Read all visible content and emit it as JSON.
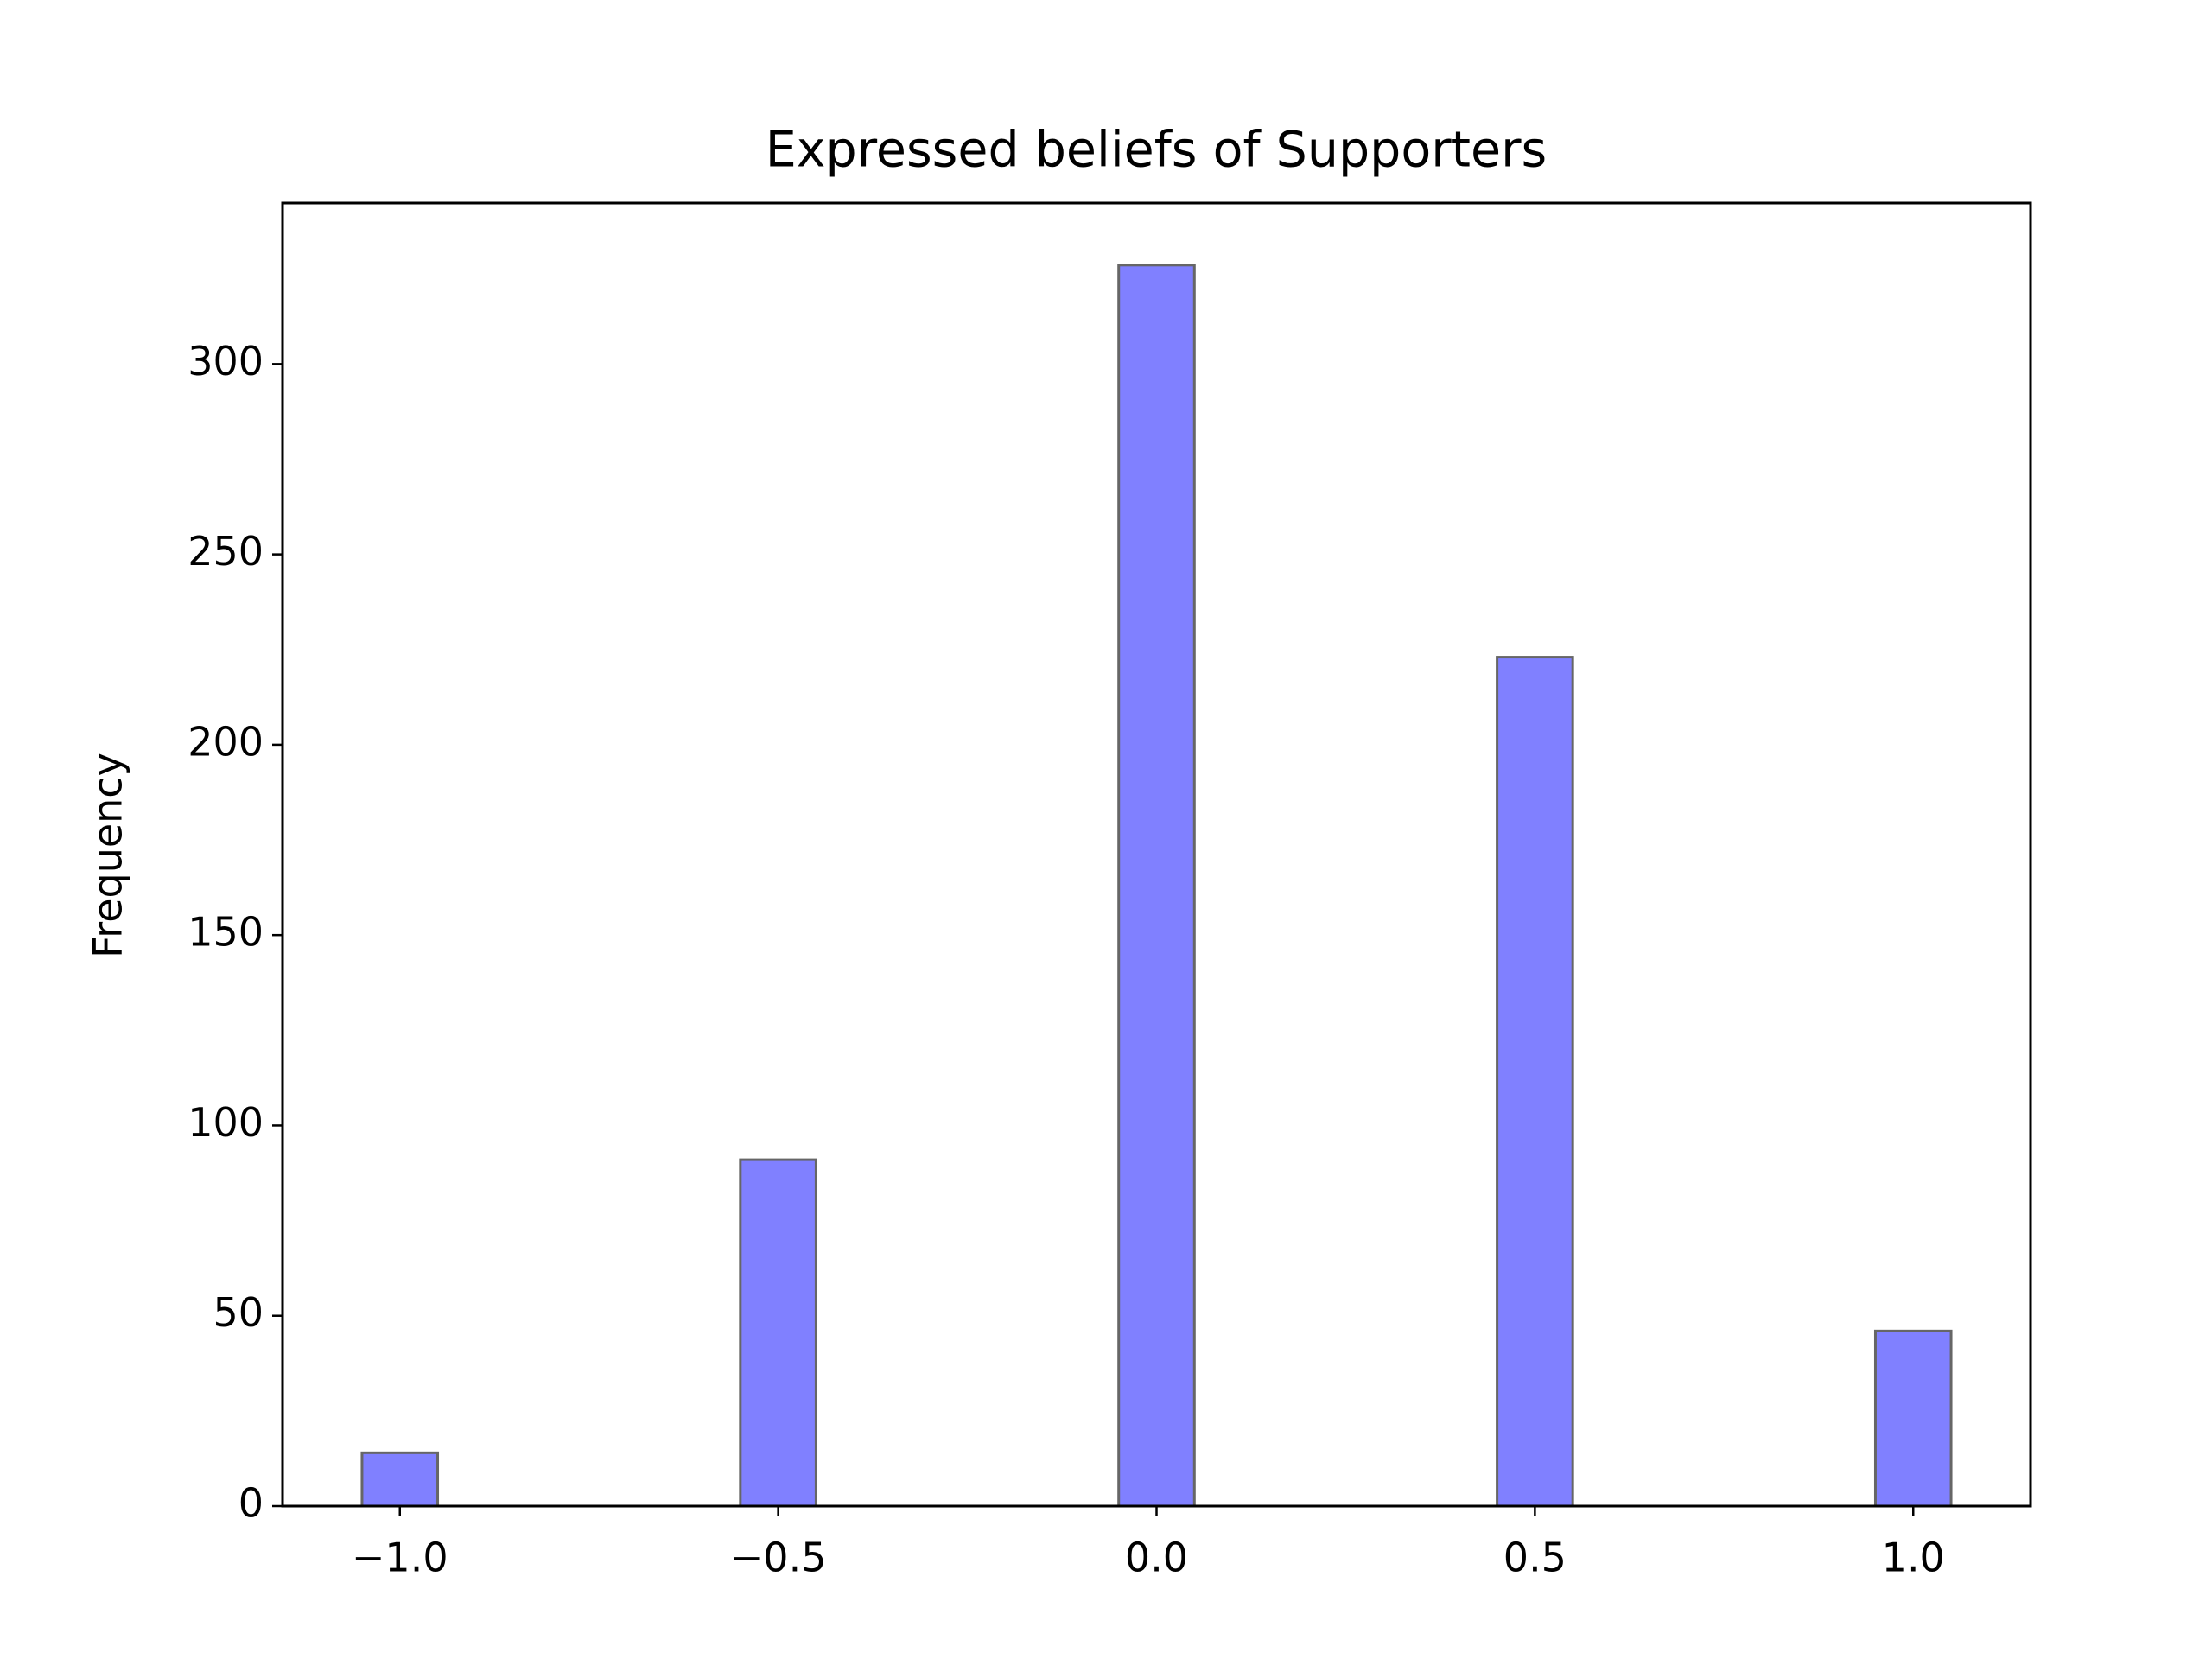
{
  "chart_data": {
    "type": "histogram",
    "title": "Expressed beliefs of Supporters",
    "y_label": "Frequency",
    "bins": [
      -1.05,
      -0.95,
      -0.85,
      -0.75,
      -0.65,
      -0.55,
      -0.45,
      -0.35,
      -0.25,
      -0.15,
      -0.05,
      0.05,
      0.15,
      0.25,
      0.35,
      0.45,
      0.55,
      0.65,
      0.75,
      0.85,
      0.95,
      1.05
    ],
    "values": [
      14,
      0,
      0,
      0,
      0,
      91,
      0,
      0,
      0,
      0,
      326,
      0,
      0,
      0,
      0,
      223,
      0,
      0,
      0,
      0,
      46
    ],
    "color": "#8080ff",
    "edge_color": "#666666",
    "xlim": [
      -1.155,
      1.155
    ],
    "xticks": [
      {
        "value": -1.0,
        "label": "−1.0"
      },
      {
        "value": -0.5,
        "label": "−0.5"
      },
      {
        "value": 0.0,
        "label": "0.0"
      },
      {
        "value": 0.5,
        "label": "0.5"
      },
      {
        "value": 1.0,
        "label": "1.0"
      }
    ],
    "ylim": [
      0,
      342.3
    ],
    "yticks": [
      0,
      50,
      100,
      150,
      200,
      250,
      300
    ],
    "grid": false
  }
}
